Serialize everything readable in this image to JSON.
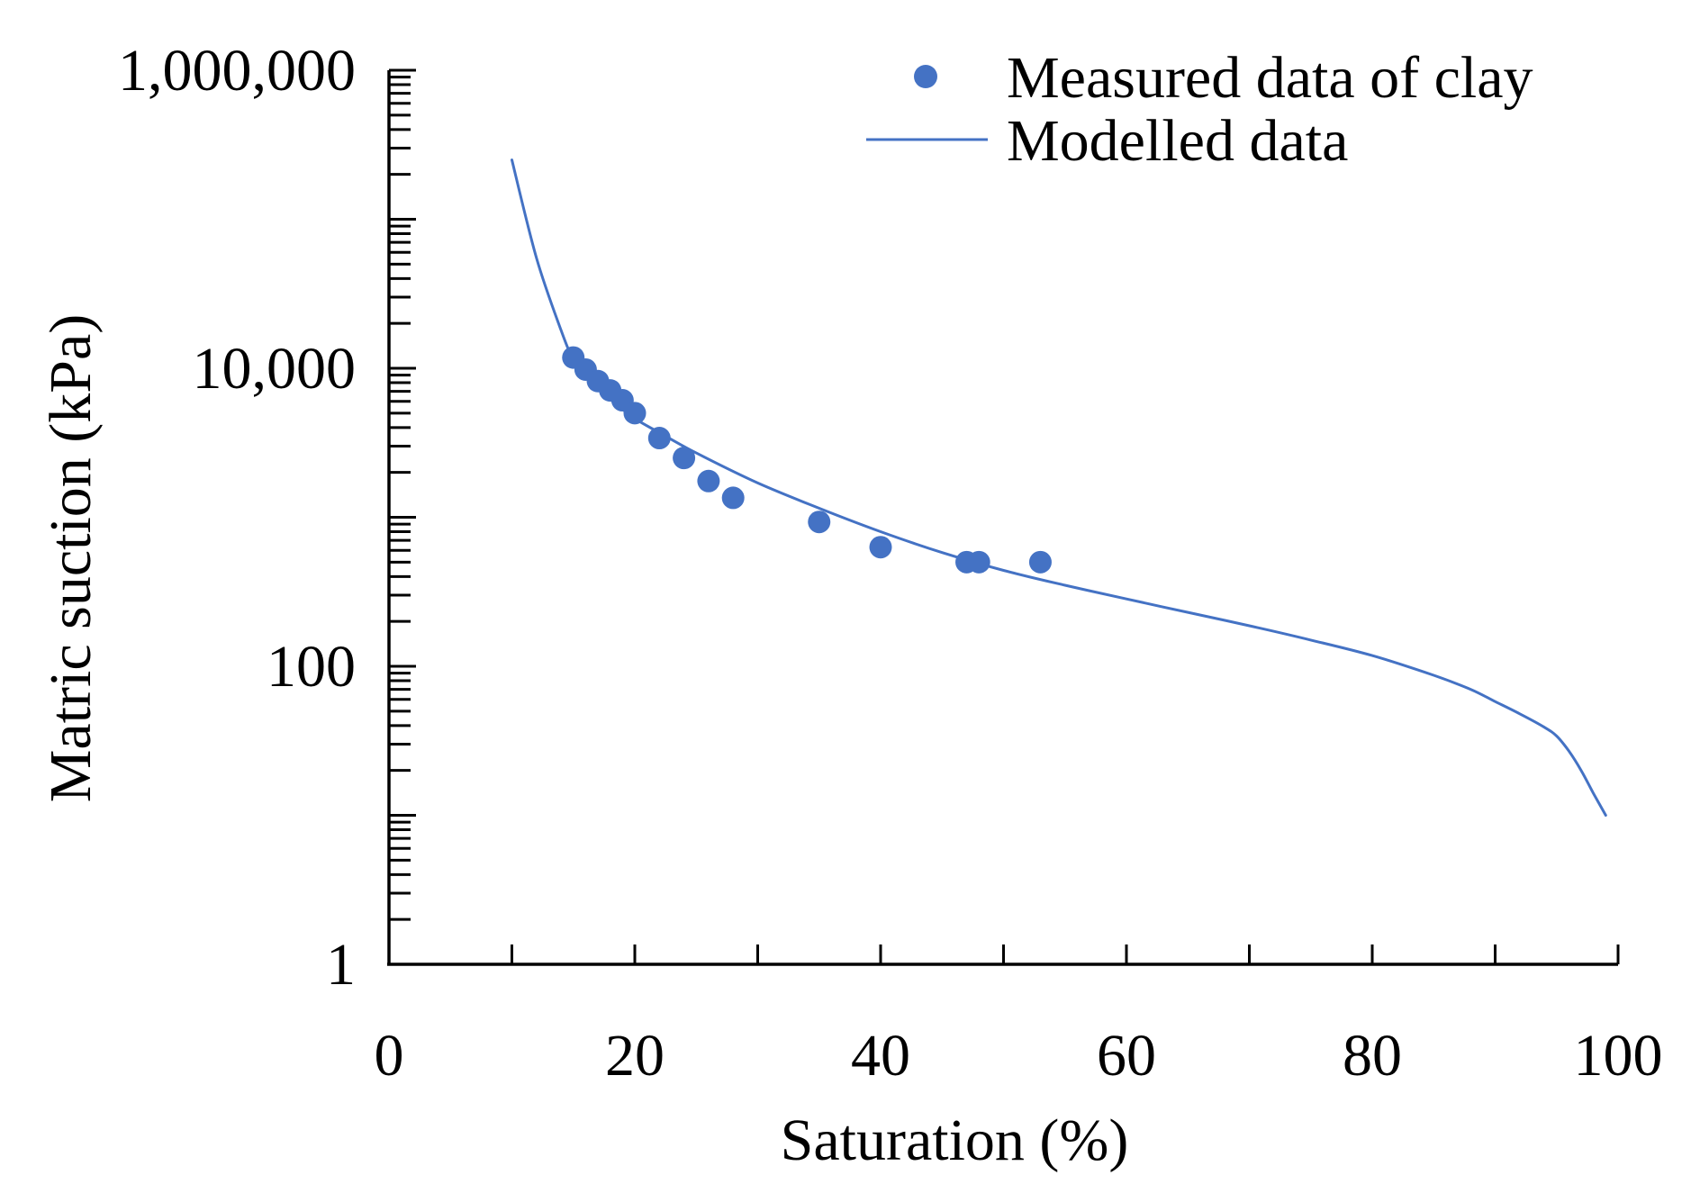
{
  "chart_data": {
    "type": "scatter",
    "title": "",
    "xlabel": "Saturation (%)",
    "ylabel": "Matric suction (kPa)",
    "xlim": [
      0,
      100
    ],
    "ylim": [
      1,
      1000000
    ],
    "yscale": "log",
    "x_ticks": [
      0,
      20,
      40,
      60,
      80,
      100
    ],
    "x_tick_labels": [
      "0",
      "20",
      "40",
      "60",
      "80",
      "100"
    ],
    "x_minor_step": 10,
    "y_ticks": [
      1,
      100,
      10000,
      1000000
    ],
    "y_tick_labels": [
      "1",
      "100",
      "10,000",
      "1,000,000"
    ],
    "grid": false,
    "legend_position": "top-right",
    "colors": {
      "series": "#4472C4",
      "axis": "#000000"
    },
    "series": [
      {
        "name": "Measured data of clay",
        "kind": "scatter",
        "x": [
          15,
          16,
          17,
          18,
          19,
          20,
          22,
          24,
          26,
          28,
          35,
          40,
          47,
          48,
          53
        ],
        "y": [
          11800,
          9800,
          8200,
          7100,
          6100,
          5000,
          3400,
          2500,
          1750,
          1350,
          930,
          630,
          500,
          500,
          500
        ]
      },
      {
        "name": "Modelled data",
        "kind": "line",
        "x": [
          10,
          12,
          14,
          15,
          16,
          18,
          20,
          22,
          25,
          30,
          35,
          40,
          45,
          50,
          55,
          60,
          65,
          70,
          75,
          80,
          85,
          88,
          90,
          92,
          94,
          95,
          96,
          97,
          98,
          99
        ],
        "y": [
          250000,
          55000,
          18000,
          11500,
          9000,
          6200,
          4600,
          3700,
          2700,
          1700,
          1150,
          800,
          580,
          440,
          350,
          283,
          230,
          187,
          150,
          118,
          87,
          70,
          58,
          48,
          39,
          34,
          27,
          20,
          14,
          10
        ]
      }
    ]
  }
}
